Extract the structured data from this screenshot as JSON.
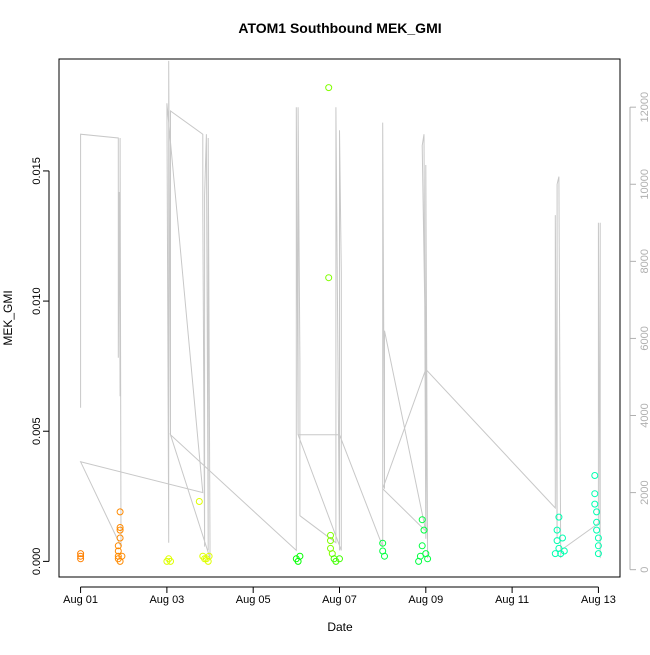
{
  "chart_data": {
    "type": "scatter",
    "title": "ATOM1 Southbound MEK_GMI",
    "xlabel": "Date",
    "ylabel": "MEK_GMI",
    "x_ticks": [
      "Aug 01",
      "Aug 03",
      "Aug 05",
      "Aug 07",
      "Aug 09",
      "Aug 11",
      "Aug 13"
    ],
    "y_ticks": [
      "0.000",
      "0.005",
      "0.010",
      "0.015"
    ],
    "y2_ticks": [
      "0",
      "2000",
      "4000",
      "6000",
      "8000",
      "10000",
      "12000"
    ],
    "xlim": [
      "2023-07-31T12:00",
      "2023-08-13T12:00"
    ],
    "ylim": [
      -0.0006,
      0.0193
    ],
    "y2lim": [
      -190,
      13250
    ],
    "grid": false,
    "colors": {
      "line": "#c8c8c8",
      "y2_axis": "#b0b0b0",
      "points_aug01": "#ff8000",
      "points_aug03": "#dfff00",
      "points_aug06": "#00ff00",
      "points_aug12": "#00ffb0"
    },
    "series": [
      {
        "marker": "open-circle",
        "points": [
          [
            "2023-08-01T00:00",
            0.0001,
            "#ff8000"
          ],
          [
            "2023-08-01T00:00",
            0.0002,
            "#ff8000"
          ],
          [
            "2023-08-01T00:00",
            0.0003,
            "#ff8000"
          ],
          [
            "2023-08-01T21:00",
            0.0001,
            "#ff8a00"
          ],
          [
            "2023-08-01T21:00",
            0.0002,
            "#ff8a00"
          ],
          [
            "2023-08-01T21:00",
            0.0004,
            "#ff8a00"
          ],
          [
            "2023-08-01T21:00",
            0.0006,
            "#ff8a00"
          ],
          [
            "2023-08-01T22:00",
            0.0009,
            "#ff8a00"
          ],
          [
            "2023-08-01T22:00",
            0.0012,
            "#ff8a00"
          ],
          [
            "2023-08-01T22:00",
            0.0013,
            "#ff8a00"
          ],
          [
            "2023-08-01T22:00",
            0.0019,
            "#ff8a00"
          ],
          [
            "2023-08-01T22:00",
            0.0,
            "#ff8a00"
          ],
          [
            "2023-08-01T23:00",
            0.0002,
            "#ff8a00"
          ],
          [
            "2023-08-03T00:00",
            0.0,
            "#dfff00"
          ],
          [
            "2023-08-03T01:00",
            0.0001,
            "#dfff00"
          ],
          [
            "2023-08-03T02:00",
            0.0,
            "#dfff00"
          ],
          [
            "2023-08-03T18:00",
            0.0023,
            "#dfff00"
          ],
          [
            "2023-08-03T20:00",
            0.0002,
            "#dfff00"
          ],
          [
            "2023-08-03T21:00",
            0.0001,
            "#dfff00"
          ],
          [
            "2023-08-03T22:00",
            0.0001,
            "#dfff00"
          ],
          [
            "2023-08-03T23:00",
            0.0,
            "#dfff00"
          ],
          [
            "2023-08-03T23:30",
            0.0002,
            "#dfff00"
          ],
          [
            "2023-08-06T00:00",
            0.0001,
            "#00ff00"
          ],
          [
            "2023-08-06T01:00",
            0.0,
            "#00ff00"
          ],
          [
            "2023-08-06T02:00",
            0.0002,
            "#00ff00"
          ],
          [
            "2023-08-06T18:00",
            0.0182,
            "#80ff00"
          ],
          [
            "2023-08-06T18:00",
            0.0109,
            "#80ff00"
          ],
          [
            "2023-08-06T19:00",
            0.001,
            "#80ff00"
          ],
          [
            "2023-08-06T19:00",
            0.0008,
            "#80ff00"
          ],
          [
            "2023-08-06T19:00",
            0.0005,
            "#80ff00"
          ],
          [
            "2023-08-06T20:00",
            0.0003,
            "#80ff00"
          ],
          [
            "2023-08-06T21:00",
            0.0001,
            "#40ff00"
          ],
          [
            "2023-08-06T22:00",
            0.0,
            "#40ff00"
          ],
          [
            "2023-08-07T00:00",
            0.0001,
            "#40ff00"
          ],
          [
            "2023-08-08T00:00",
            0.0007,
            "#00ff40"
          ],
          [
            "2023-08-08T00:00",
            0.0004,
            "#00ff40"
          ],
          [
            "2023-08-08T01:00",
            0.0002,
            "#00ff40"
          ],
          [
            "2023-08-08T20:00",
            0.0,
            "#00ff40"
          ],
          [
            "2023-08-08T21:00",
            0.0002,
            "#00ff40"
          ],
          [
            "2023-08-08T22:00",
            0.0006,
            "#00ff40"
          ],
          [
            "2023-08-08T22:00",
            0.0016,
            "#00ff40"
          ],
          [
            "2023-08-08T23:00",
            0.0012,
            "#00ff40"
          ],
          [
            "2023-08-09T00:00",
            0.0003,
            "#00ff40"
          ],
          [
            "2023-08-09T01:00",
            0.0001,
            "#00ff40"
          ],
          [
            "2023-08-12T00:00",
            0.0003,
            "#00ffb0"
          ],
          [
            "2023-08-12T01:00",
            0.0008,
            "#00ffb0"
          ],
          [
            "2023-08-12T01:00",
            0.0012,
            "#00ffb0"
          ],
          [
            "2023-08-12T02:00",
            0.0017,
            "#00ffb0"
          ],
          [
            "2023-08-12T02:00",
            0.0005,
            "#00ffb0"
          ],
          [
            "2023-08-12T03:00",
            0.0003,
            "#00ffb0"
          ],
          [
            "2023-08-12T04:00",
            0.0009,
            "#00ffb0"
          ],
          [
            "2023-08-12T05:00",
            0.0004,
            "#00ffb0"
          ],
          [
            "2023-08-12T22:00",
            0.0033,
            "#00ffb0"
          ],
          [
            "2023-08-12T22:00",
            0.0026,
            "#00ffb0"
          ],
          [
            "2023-08-12T22:00",
            0.0022,
            "#00ffb0"
          ],
          [
            "2023-08-12T23:00",
            0.0019,
            "#00ffb0"
          ],
          [
            "2023-08-12T23:00",
            0.0015,
            "#00ffb0"
          ],
          [
            "2023-08-12T23:00",
            0.0012,
            "#00ffb0"
          ],
          [
            "2023-08-13T00:00",
            0.0009,
            "#00ffb0"
          ],
          [
            "2023-08-13T00:00",
            0.0006,
            "#00ffb0"
          ],
          [
            "2023-08-13T00:00",
            0.0003,
            "#00ffb0"
          ]
        ]
      },
      {
        "axis": "right",
        "line_points": [
          [
            "2023-08-01T00:00",
            4200
          ],
          [
            "2023-08-01T00:00",
            11300
          ],
          [
            "2023-08-01T21:00",
            11200
          ],
          [
            "2023-08-01T21:00",
            5500
          ],
          [
            "2023-08-01T21:30",
            9800
          ],
          [
            "2023-08-01T22:00",
            4500
          ],
          [
            "2023-08-01T22:00",
            11200
          ],
          [
            "2023-08-01T22:30",
            600
          ],
          [
            "2023-08-01T00:00",
            2800
          ],
          [
            "2023-08-03T20:00",
            2000
          ],
          [
            "2023-08-03T00:00",
            12100
          ],
          [
            "2023-08-03T01:00",
            700
          ],
          [
            "2023-08-03T01:00",
            13200
          ],
          [
            "2023-08-03T02:00",
            3500
          ],
          [
            "2023-08-03T02:00",
            11900
          ],
          [
            "2023-08-03T20:00",
            11300
          ],
          [
            "2023-08-03T20:00",
            9400
          ],
          [
            "2023-08-03T21:00",
            600
          ],
          [
            "2023-08-03T21:00",
            9700
          ],
          [
            "2023-08-03T22:00",
            11300
          ],
          [
            "2023-08-03T23:00",
            500
          ],
          [
            "2023-08-03T23:00",
            11200
          ],
          [
            "2023-08-04T00:00",
            600
          ],
          [
            "2023-08-04T00:00",
            300
          ],
          [
            "2023-08-03T02:00",
            3500
          ],
          [
            "2023-08-06T00:00",
            500
          ],
          [
            "2023-08-06T00:00",
            12000
          ],
          [
            "2023-08-06T01:00",
            3500
          ],
          [
            "2023-08-06T01:00",
            12000
          ],
          [
            "2023-08-06T02:00",
            5400
          ],
          [
            "2023-08-06T02:00",
            1400
          ],
          [
            "2023-08-06T22:00",
            700
          ],
          [
            "2023-08-06T22:00",
            12000
          ],
          [
            "2023-08-07T00:00",
            500
          ],
          [
            "2023-08-07T00:00",
            9800
          ],
          [
            "2023-08-07T00:00",
            11400
          ],
          [
            "2023-08-07T01:00",
            7700
          ],
          [
            "2023-08-07T01:00",
            500
          ],
          [
            "2023-08-06T01:00",
            3500
          ],
          [
            "2023-08-07T00:00",
            3500
          ],
          [
            "2023-08-08T00:00",
            600
          ],
          [
            "2023-08-08T00:00",
            11600
          ],
          [
            "2023-08-08T01:00",
            2100
          ],
          [
            "2023-08-08T01:00",
            6200
          ],
          [
            "2023-08-09T00:00",
            1000
          ],
          [
            "2023-08-08T00:00",
            2100
          ],
          [
            "2023-08-09T00:00",
            5200
          ],
          [
            "2023-08-08T22:00",
            11000
          ],
          [
            "2023-08-08T23:00",
            11300
          ],
          [
            "2023-08-09T00:00",
            800
          ],
          [
            "2023-08-09T00:00",
            10500
          ],
          [
            "2023-08-09T01:00",
            300
          ],
          [
            "2023-08-09T00:00",
            5200
          ],
          [
            "2023-08-12T00:00",
            1600
          ],
          [
            "2023-08-12T00:00",
            9200
          ],
          [
            "2023-08-12T01:00",
            800
          ],
          [
            "2023-08-12T01:00",
            10000
          ],
          [
            "2023-08-12T02:00",
            10200
          ],
          [
            "2023-08-12T03:00",
            300
          ],
          [
            "2023-08-12T03:00",
            500
          ],
          [
            "2023-08-13T00:00",
            1200
          ],
          [
            "2023-08-13T00:00",
            9000
          ],
          [
            "2023-08-13T01:00",
            300
          ],
          [
            "2023-08-13T01:00",
            9000
          ],
          [
            "2023-08-13T01:00",
            500
          ]
        ]
      }
    ]
  }
}
